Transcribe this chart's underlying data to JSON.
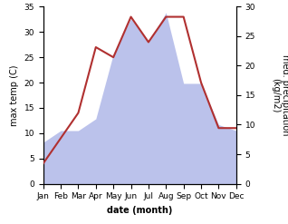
{
  "months": [
    "Jan",
    "Feb",
    "Mar",
    "Apr",
    "May",
    "Jun",
    "Jul",
    "Aug",
    "Sep",
    "Oct",
    "Nov",
    "Dec"
  ],
  "temperature": [
    4,
    9,
    14,
    27,
    25,
    33,
    28,
    33,
    33,
    20,
    11,
    11
  ],
  "precipitation": [
    7,
    9,
    9,
    11,
    22,
    28,
    24,
    29,
    17,
    17,
    10,
    9
  ],
  "temp_color": "#b03030",
  "precip_color": "#b0b8e8",
  "background_color": "#ffffff",
  "ylabel_left": "max temp (C)",
  "ylabel_right": "med. precipitation\n(kg/m2)",
  "xlabel": "date (month)",
  "ylim_left": [
    0,
    35
  ],
  "ylim_right": [
    0,
    30
  ],
  "label_fontsize": 7,
  "tick_fontsize": 6.5
}
